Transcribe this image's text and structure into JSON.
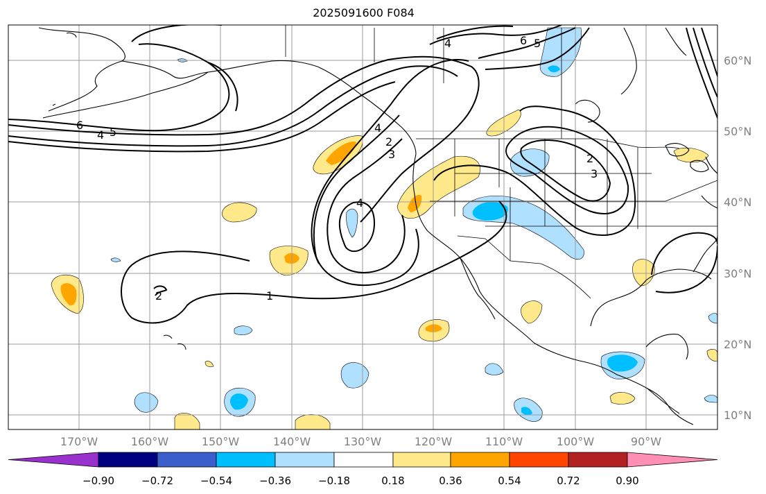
{
  "title": "2025091600 F084",
  "longitude_labels": [
    "170°W",
    "160°W",
    "150°W",
    "140°W",
    "130°W",
    "120°W",
    "110°W",
    "100°W",
    "90°W"
  ],
  "latitude_labels": [
    "60°N",
    "50°N",
    "40°N",
    "30°N",
    "20°N",
    "10°N"
  ],
  "contour_labels": {
    "north_pac_6": "6",
    "north_pac_4": "4",
    "north_pac_5": "5",
    "canada_4": "4",
    "canada_6": "6",
    "canada_5": "5",
    "coast_4": "4",
    "coast_2": "2",
    "coast_3": "3",
    "trough_4": "4",
    "plains_2": "2",
    "plains_3": "3",
    "hawaii_2": "2",
    "subtropic_1": "1"
  },
  "colorbar": {
    "tick_labels": [
      "−0.90",
      "−0.72",
      "−0.54",
      "−0.36",
      "−0.18",
      "0.18",
      "0.36",
      "0.54",
      "0.72",
      "0.90"
    ],
    "colors": {
      "under": "#9932CC",
      "c1": "#000080",
      "c2": "#3A5FCD",
      "c3": "#00BFFF",
      "c4": "#B0E0FF",
      "c5": "#FFFFFF",
      "c6": "#FFE98A",
      "c7": "#FFA500",
      "c8": "#FF4500",
      "c9": "#B22222",
      "c10": "#FF8FB4",
      "over": "#FF8FB4"
    }
  }
}
